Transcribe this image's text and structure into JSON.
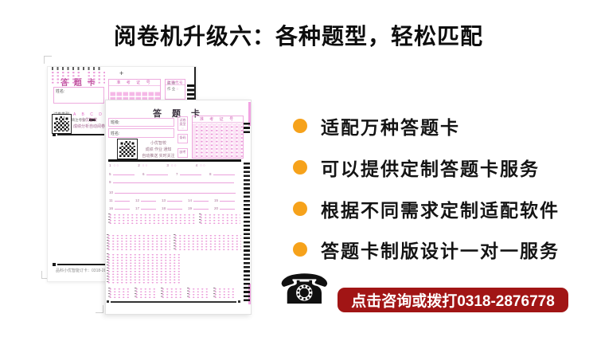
{
  "page": {
    "title": "阅卷机升级六：各种题型，轻松匹配"
  },
  "bullets": [
    {
      "label": "适配万种答题卡"
    },
    {
      "label": "可以提供定制答题卡服务"
    },
    {
      "label": "根据不同需求定制适配软件"
    },
    {
      "label": "答题卡制版设计一对一服务"
    }
  ],
  "contact": {
    "phone_glyph": "☎",
    "banner_label": "点击咨询或拨打0318-2876778"
  },
  "colors": {
    "accent_orange": "#F6A21B",
    "banner_red": "#A11515",
    "sheet_pink": "#E873CC"
  },
  "back_card": {
    "title": "答 题 卡",
    "plus_mark": "+",
    "name_label": "姓名:",
    "paper_type_label": "试卷类型",
    "paper_type_options": "A B C D",
    "notice": "先涂标记后填注考号",
    "qr_caption1": "小优智校",
    "qr_caption2": "成绩分析自动阅卷",
    "exam_no_header": "准 考 证 号",
    "subject_code_label": "科目代号",
    "subject_row1": "成 绩",
    "subject_row2": "作 业",
    "footer": "品科小优智能订卡：0318-28"
  },
  "front_card": {
    "title": "答  题  卡",
    "class_label": "班级:",
    "name_label": "姓名:",
    "mini_box1_label": "试卷类型",
    "mini_box2_label": "条码",
    "mini_box3_label": "缺考",
    "exam_no_header": "准 考 证 号",
    "qr_caption1": "小优智校",
    "qr_caption2": "成绩 作业 通知",
    "qr_caption3": "自动推送 实时关注",
    "questions": {
      "tf": [
        "1",
        "2",
        "3",
        "4"
      ],
      "short": [
        "5",
        "6",
        "7",
        "8"
      ],
      "long": [
        "9",
        "10"
      ],
      "mid1": [
        "11",
        "12",
        "13",
        "14",
        "15"
      ],
      "mid2": [
        "16",
        "17",
        "18",
        "19",
        "20"
      ]
    }
  }
}
